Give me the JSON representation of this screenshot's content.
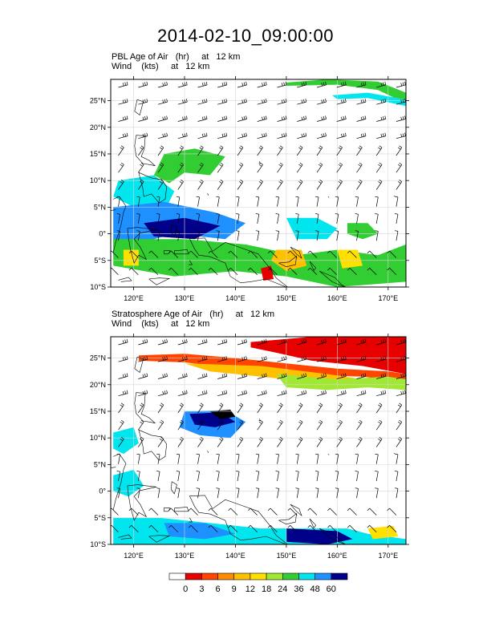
{
  "title": "2014-02-10_09:00:00",
  "panels": [
    {
      "id": "pbl",
      "subtitle_field": "PBL Age of Air   (hr)     at   12 km",
      "subtitle_wind": "Wind    (kts)     at   12 km"
    },
    {
      "id": "strat",
      "subtitle_field": "Stratosphere Age of Air   (hr)     at   12 km",
      "subtitle_wind": "Wind    (kts)     at   12 km"
    }
  ],
  "map": {
    "lon_range": [
      115.5,
      173.5
    ],
    "lat_range": [
      -10,
      29
    ],
    "lon_ticks": [
      120,
      130,
      140,
      150,
      160,
      170
    ],
    "lon_labels": [
      "120°E",
      "130°E",
      "140°E",
      "150°E",
      "160°E",
      "170°E"
    ],
    "lat_ticks": [
      -10,
      -5,
      0,
      5,
      10,
      15,
      20,
      25
    ],
    "lat_labels": [
      "10°S",
      "5°S",
      "0°",
      "5°N",
      "10°N",
      "15°N",
      "20°N",
      "25°N"
    ],
    "grid": true
  },
  "colorbar": {
    "labels": [
      "0",
      "3",
      "6",
      "9",
      "12",
      "18",
      "24",
      "36",
      "48",
      "60"
    ],
    "colors": [
      "#ffffff",
      "#e60000",
      "#ff4500",
      "#ff8c00",
      "#ffc000",
      "#ffe000",
      "#a0e832",
      "#32cd32",
      "#00e5ee",
      "#1e90ff",
      "#00008b"
    ]
  }
}
